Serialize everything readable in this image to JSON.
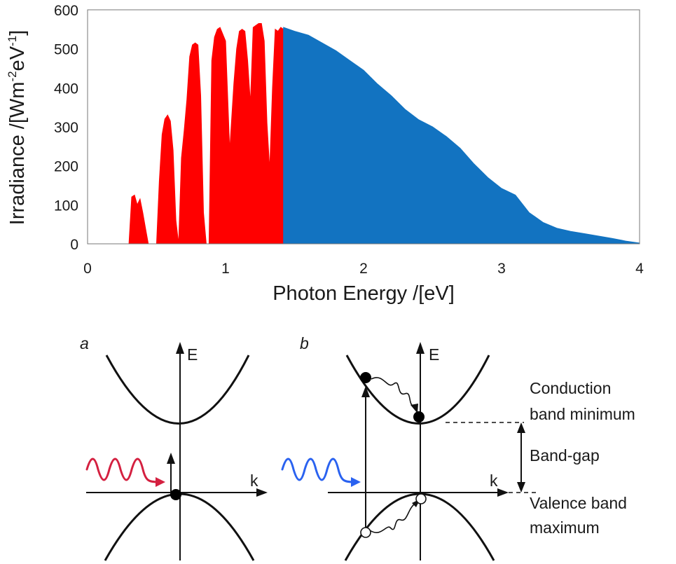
{
  "chart_data": {
    "type": "area",
    "xlabel": "Photon Energy /[eV]",
    "ylabel_main": "Irradiance /[Wm",
    "ylabel_sup1": "-2",
    "ylabel_mid": "eV",
    "ylabel_sup2": "-1",
    "ylabel_end": "]",
    "xlim": [
      0,
      4
    ],
    "ylim": [
      0,
      600
    ],
    "x_ticks": [
      "0",
      "1",
      "2",
      "3",
      "4"
    ],
    "y_ticks": [
      "0",
      "100",
      "200",
      "300",
      "400",
      "500",
      "600"
    ],
    "grid": false,
    "series": [
      {
        "color": "#ff0000",
        "x": [
          0.3,
          0.32,
          0.34,
          0.36,
          0.38,
          0.4,
          0.42,
          0.44,
          0.46,
          0.5,
          0.52,
          0.54,
          0.56,
          0.58,
          0.6,
          0.62,
          0.64,
          0.66,
          0.68,
          0.7,
          0.72,
          0.74,
          0.76,
          0.78,
          0.8,
          0.82,
          0.84,
          0.86,
          0.88,
          0.9,
          0.92,
          0.94,
          0.96,
          1.0,
          1.03,
          1.06,
          1.08,
          1.1,
          1.12,
          1.14,
          1.16,
          1.18,
          1.2,
          1.22,
          1.24,
          1.26,
          1.28,
          1.3,
          1.32,
          1.34,
          1.36,
          1.38,
          1.4,
          1.42
        ],
        "y": [
          0,
          120,
          125,
          100,
          115,
          80,
          40,
          0,
          0,
          0,
          160,
          280,
          320,
          330,
          315,
          240,
          60,
          0,
          220,
          290,
          370,
          480,
          510,
          515,
          510,
          380,
          80,
          0,
          0,
          470,
          530,
          550,
          555,
          520,
          240,
          410,
          500,
          545,
          550,
          545,
          470,
          360,
          555,
          560,
          565,
          565,
          520,
          310,
          190,
          400,
          550,
          545,
          555,
          550
        ]
      },
      {
        "color": "#1273c1",
        "x": [
          1.42,
          1.5,
          1.6,
          1.7,
          1.8,
          1.9,
          2.0,
          2.1,
          2.2,
          2.3,
          2.4,
          2.5,
          2.6,
          2.7,
          2.8,
          2.9,
          3.0,
          3.1,
          3.2,
          3.3,
          3.4,
          3.5,
          3.6,
          3.7,
          3.8,
          3.9,
          4.0
        ],
        "y": [
          555,
          545,
          535,
          515,
          495,
          470,
          445,
          410,
          380,
          345,
          318,
          300,
          275,
          245,
          205,
          170,
          142,
          125,
          80,
          55,
          40,
          32,
          26,
          20,
          14,
          7,
          2
        ]
      }
    ]
  },
  "diagram": {
    "panel_a": {
      "label": "a",
      "axis_e": "E",
      "axis_k": "k"
    },
    "panel_b": {
      "label": "b",
      "axis_e": "E",
      "axis_k": "k",
      "cbm_line1": "Conduction",
      "cbm_line2": "band minimum",
      "gap_label": "Band-gap",
      "vbm_line1": "Valence band",
      "vbm_line2": "maximum"
    },
    "colors": {
      "red_photon": "#d42040",
      "blue_photon": "#2a62f0",
      "curve": "#111111"
    }
  }
}
